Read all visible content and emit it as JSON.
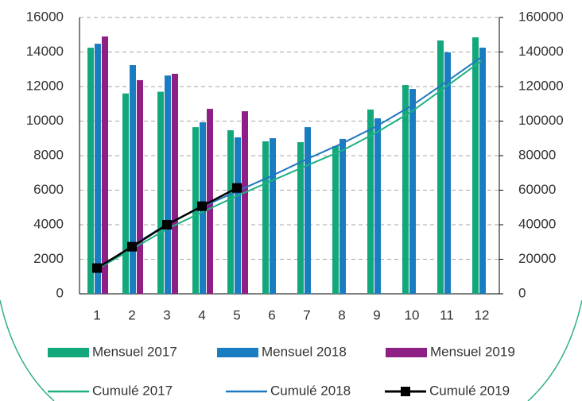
{
  "chart_data": {
    "type": "bar",
    "categories": [
      "1",
      "2",
      "3",
      "4",
      "5",
      "6",
      "7",
      "8",
      "9",
      "10",
      "11",
      "12"
    ],
    "ylim": [
      0,
      16000
    ],
    "yticks": [
      0,
      2000,
      4000,
      6000,
      8000,
      10000,
      12000,
      14000,
      16000
    ],
    "y2lim": [
      0,
      160000
    ],
    "y2ticks": [
      0,
      20000,
      40000,
      60000,
      80000,
      100000,
      120000,
      140000,
      160000
    ],
    "grid": true,
    "series": [
      {
        "name": "Mensuel 2017",
        "type": "bar",
        "color": "#13a87b",
        "values": [
          14250,
          11600,
          11700,
          9650,
          9470,
          8830,
          8780,
          8550,
          10670,
          12090,
          14670,
          14850
        ]
      },
      {
        "name": "Mensuel 2018",
        "type": "bar",
        "color": "#1a7cc1",
        "values": [
          14480,
          13240,
          12640,
          9930,
          9060,
          9010,
          9650,
          8970,
          10160,
          11860,
          13980,
          14250
        ]
      },
      {
        "name": "Mensuel 2019",
        "type": "bar",
        "color": "#8e1f85",
        "values": [
          14900,
          12370,
          12740,
          10710,
          10570,
          null,
          null,
          null,
          null,
          null,
          null,
          null
        ]
      },
      {
        "name": "Cumulé 2017",
        "type": "line",
        "axis": "y2",
        "color": "#1fb083",
        "values": [
          14250,
          25850,
          37550,
          47200,
          56670,
          65500,
          74280,
          82830,
          93500,
          105590,
          120260,
          135110
        ]
      },
      {
        "name": "Cumulé 2018",
        "type": "line",
        "axis": "y2",
        "color": "#1f78c0",
        "values": [
          14480,
          27720,
          40360,
          50290,
          59350,
          68360,
          78010,
          86980,
          97140,
          109000,
          122980,
          137230
        ]
      },
      {
        "name": "Cumulé 2019",
        "type": "line",
        "axis": "y2",
        "color": "#000000",
        "marker": "square",
        "values": [
          14900,
          27270,
          40010,
          50720,
          61290,
          null,
          null,
          null,
          null,
          null,
          null,
          null
        ]
      }
    ]
  }
}
